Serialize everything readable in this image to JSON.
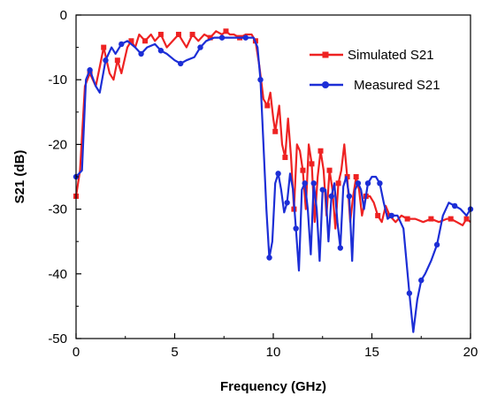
{
  "chart_data": {
    "type": "line",
    "title": "",
    "xlabel": "Frequency (GHz)",
    "ylabel": "S21 (dB)",
    "xlim": [
      0,
      20
    ],
    "ylim": [
      -50,
      0
    ],
    "xticks": [
      "0",
      "5",
      "10",
      "15",
      "20"
    ],
    "yticks": [
      "0",
      "-10",
      "-20",
      "-30",
      "-40",
      "-50"
    ],
    "grid": false,
    "legend_position": "top-right",
    "series": [
      {
        "name": "Simulated S21",
        "color": "#ee2222",
        "marker": "square",
        "x": [
          0.0,
          0.2,
          0.45,
          0.7,
          1.0,
          1.2,
          1.4,
          1.7,
          1.9,
          2.1,
          2.3,
          2.6,
          2.8,
          3.0,
          3.2,
          3.5,
          3.8,
          4.0,
          4.3,
          4.6,
          4.9,
          5.2,
          5.4,
          5.6,
          5.9,
          6.2,
          6.5,
          6.8,
          7.1,
          7.4,
          7.6,
          7.8,
          8.0,
          8.3,
          8.6,
          8.9,
          9.1,
          9.3,
          9.5,
          9.7,
          9.85,
          10.0,
          10.1,
          10.3,
          10.45,
          10.6,
          10.75,
          10.9,
          11.05,
          11.2,
          11.35,
          11.5,
          11.65,
          11.8,
          11.95,
          12.1,
          12.25,
          12.4,
          12.55,
          12.7,
          12.85,
          13.0,
          13.15,
          13.3,
          13.45,
          13.6,
          13.75,
          13.9,
          14.05,
          14.2,
          14.35,
          14.5,
          14.7,
          14.9,
          15.1,
          15.3,
          15.5,
          15.7,
          15.9,
          16.2,
          16.5,
          16.8,
          17.2,
          17.6,
          18.0,
          18.4,
          18.8,
          19.0,
          19.3,
          19.6,
          19.8,
          20.0
        ],
        "y": [
          -28.0,
          -24.0,
          -11.0,
          -9.0,
          -11.0,
          -8.0,
          -5.0,
          -9.0,
          -10.0,
          -7.0,
          -9.0,
          -5.0,
          -4.0,
          -5.0,
          -3.0,
          -4.0,
          -3.0,
          -4.0,
          -3.0,
          -5.0,
          -4.0,
          -3.0,
          -4.0,
          -5.0,
          -3.0,
          -4.0,
          -3.0,
          -3.5,
          -2.5,
          -3.0,
          -2.5,
          -3.0,
          -3.0,
          -3.5,
          -3.0,
          -3.0,
          -4.0,
          -8.0,
          -13.0,
          -14.0,
          -12.0,
          -16.0,
          -18.0,
          -14.0,
          -20.0,
          -22.0,
          -16.0,
          -22.0,
          -30.0,
          -20.0,
          -21.0,
          -24.0,
          -30.0,
          -20.0,
          -23.0,
          -32.0,
          -25.0,
          -21.0,
          -24.0,
          -31.0,
          -24.0,
          -27.0,
          -33.0,
          -26.0,
          -24.0,
          -20.0,
          -25.0,
          -32.0,
          -28.0,
          -25.0,
          -27.0,
          -31.0,
          -28.0,
          -28.0,
          -29.0,
          -31.0,
          -32.0,
          -29.5,
          -31.0,
          -32.0,
          -31.0,
          -31.5,
          -31.5,
          -32.0,
          -31.5,
          -32.0,
          -31.5,
          -31.5,
          -32.0,
          -32.5,
          -31.5,
          -32.0
        ]
      },
      {
        "name": "Measured S21",
        "color": "#1c2ed6",
        "marker": "circle",
        "x": [
          0.0,
          0.3,
          0.5,
          0.7,
          1.0,
          1.2,
          1.5,
          1.8,
          2.0,
          2.3,
          2.6,
          3.0,
          3.3,
          3.6,
          4.0,
          4.3,
          4.6,
          5.0,
          5.3,
          5.6,
          6.0,
          6.3,
          6.6,
          7.0,
          7.4,
          7.8,
          8.2,
          8.6,
          9.0,
          9.2,
          9.35,
          9.5,
          9.65,
          9.8,
          9.95,
          10.1,
          10.25,
          10.4,
          10.55,
          10.7,
          10.85,
          11.0,
          11.15,
          11.3,
          11.45,
          11.6,
          11.75,
          11.9,
          12.05,
          12.2,
          12.35,
          12.5,
          12.65,
          12.8,
          12.95,
          13.1,
          13.25,
          13.4,
          13.55,
          13.7,
          13.85,
          14.0,
          14.15,
          14.3,
          14.45,
          14.6,
          14.8,
          15.0,
          15.2,
          15.4,
          15.6,
          15.8,
          16.0,
          16.3,
          16.6,
          16.9,
          17.1,
          17.3,
          17.5,
          17.7,
          18.0,
          18.3,
          18.6,
          18.9,
          19.2,
          19.5,
          19.8,
          20.0
        ],
        "y": [
          -25.0,
          -24.0,
          -10.0,
          -8.5,
          -11.0,
          -12.0,
          -7.0,
          -5.0,
          -6.0,
          -4.5,
          -4.0,
          -5.0,
          -6.0,
          -5.0,
          -4.5,
          -5.5,
          -6.0,
          -7.0,
          -7.5,
          -7.0,
          -6.5,
          -5.0,
          -4.0,
          -3.5,
          -3.5,
          -3.5,
          -3.5,
          -3.5,
          -3.5,
          -5.0,
          -10.0,
          -20.0,
          -30.0,
          -37.5,
          -35.0,
          -26.0,
          -24.5,
          -27.0,
          -30.5,
          -29.0,
          -24.5,
          -27.0,
          -33.0,
          -39.5,
          -27.0,
          -26.0,
          -30.0,
          -37.0,
          -26.0,
          -30.0,
          -38.0,
          -27.0,
          -27.0,
          -35.0,
          -28.0,
          -26.0,
          -32.0,
          -36.0,
          -26.5,
          -25.0,
          -28.0,
          -38.0,
          -27.0,
          -26.0,
          -27.0,
          -30.0,
          -26.0,
          -25.0,
          -25.0,
          -26.0,
          -29.0,
          -31.5,
          -31.0,
          -31.0,
          -33.0,
          -43.0,
          -49.0,
          -44.0,
          -41.0,
          -40.0,
          -38.0,
          -35.5,
          -31.0,
          -29.0,
          -29.5,
          -30.0,
          -31.0,
          -30.0
        ]
      }
    ]
  }
}
